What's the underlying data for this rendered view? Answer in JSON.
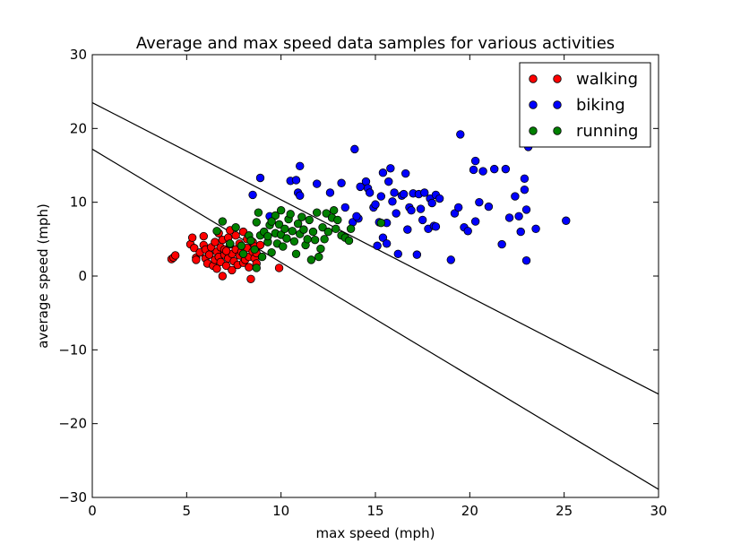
{
  "chart_data": {
    "type": "scatter",
    "title": "Average and max speed data samples for various activities",
    "xlabel": "max speed (mph)",
    "ylabel": "average speed (mph)",
    "xlim": [
      0,
      30
    ],
    "ylim": [
      -30,
      30
    ],
    "xticks": [
      0,
      5,
      10,
      15,
      20,
      25,
      30
    ],
    "yticks": [
      -30,
      -20,
      -10,
      0,
      10,
      20,
      30
    ],
    "xtick_labels": [
      "0",
      "5",
      "10",
      "15",
      "20",
      "25",
      "30"
    ],
    "ytick_labels": [
      "−30",
      "−20",
      "−10",
      "0",
      "10",
      "20",
      "30"
    ],
    "grid": false,
    "legend_position": "top-right",
    "series": [
      {
        "name": "walking",
        "color": "#ff0000",
        "points": [
          [
            4.2,
            2.3
          ],
          [
            4.3,
            2.5
          ],
          [
            4.4,
            2.8
          ],
          [
            5.2,
            4.3
          ],
          [
            5.3,
            5.2
          ],
          [
            5.4,
            3.8
          ],
          [
            5.5,
            2.5
          ],
          [
            5.5,
            2.2
          ],
          [
            5.7,
            3.2
          ],
          [
            5.9,
            5.4
          ],
          [
            5.9,
            4.2
          ],
          [
            6.0,
            3.6
          ],
          [
            6.0,
            2.4
          ],
          [
            6.1,
            1.7
          ],
          [
            6.2,
            2.9
          ],
          [
            6.3,
            3.9
          ],
          [
            6.4,
            1.4
          ],
          [
            6.5,
            2.2
          ],
          [
            6.5,
            4.6
          ],
          [
            6.6,
            3.3
          ],
          [
            6.6,
            1.0
          ],
          [
            6.7,
            2.6
          ],
          [
            6.7,
            5.8
          ],
          [
            6.8,
            3.9
          ],
          [
            6.8,
            1.9
          ],
          [
            6.9,
            0.0
          ],
          [
            6.9,
            4.9
          ],
          [
            7.0,
            2.9
          ],
          [
            7.0,
            3.6
          ],
          [
            7.1,
            1.4
          ],
          [
            7.2,
            5.2
          ],
          [
            7.2,
            2.4
          ],
          [
            7.3,
            4.3
          ],
          [
            7.3,
            6.2
          ],
          [
            7.4,
            3.0
          ],
          [
            7.4,
            0.8
          ],
          [
            7.5,
            2.0
          ],
          [
            7.6,
            5.5
          ],
          [
            7.6,
            3.6
          ],
          [
            7.7,
            1.5
          ],
          [
            7.8,
            4.4
          ],
          [
            7.8,
            2.8
          ],
          [
            7.9,
            3.3
          ],
          [
            8.0,
            1.8
          ],
          [
            8.0,
            6.0
          ],
          [
            8.1,
            2.2
          ],
          [
            8.2,
            3.8
          ],
          [
            8.2,
            5.0
          ],
          [
            8.3,
            2.6
          ],
          [
            8.3,
            1.2
          ],
          [
            8.4,
            -0.4
          ],
          [
            8.5,
            3.3
          ],
          [
            8.5,
            4.6
          ],
          [
            8.6,
            2.4
          ],
          [
            8.7,
            1.7
          ],
          [
            8.7,
            3.1
          ],
          [
            8.6,
            4.0
          ],
          [
            8.9,
            4.2
          ],
          [
            9.9,
            1.1
          ],
          [
            7.1,
            3.4
          ]
        ]
      },
      {
        "name": "biking",
        "color": "#0000ff",
        "points": [
          [
            8.5,
            11.0
          ],
          [
            8.9,
            13.3
          ],
          [
            9.4,
            8.1
          ],
          [
            10.5,
            12.9
          ],
          [
            10.8,
            13.0
          ],
          [
            10.9,
            11.3
          ],
          [
            11.0,
            14.9
          ],
          [
            11.0,
            10.9
          ],
          [
            11.9,
            12.5
          ],
          [
            12.6,
            11.3
          ],
          [
            13.2,
            12.6
          ],
          [
            13.4,
            9.3
          ],
          [
            13.8,
            7.3
          ],
          [
            13.9,
            17.2
          ],
          [
            14.1,
            7.8
          ],
          [
            14.2,
            12.1
          ],
          [
            14.5,
            12.8
          ],
          [
            14.6,
            11.9
          ],
          [
            14.7,
            11.3
          ],
          [
            14.9,
            9.3
          ],
          [
            15.0,
            9.7
          ],
          [
            15.2,
            7.3
          ],
          [
            15.3,
            10.8
          ],
          [
            15.4,
            14.0
          ],
          [
            15.4,
            5.2
          ],
          [
            15.6,
            7.2
          ],
          [
            15.6,
            4.4
          ],
          [
            15.7,
            12.8
          ],
          [
            15.8,
            14.6
          ],
          [
            15.9,
            10.1
          ],
          [
            16.0,
            11.3
          ],
          [
            16.1,
            8.5
          ],
          [
            16.2,
            3.0
          ],
          [
            16.4,
            10.9
          ],
          [
            16.6,
            13.9
          ],
          [
            16.7,
            6.3
          ],
          [
            16.8,
            9.3
          ],
          [
            16.9,
            8.9
          ],
          [
            17.0,
            11.2
          ],
          [
            17.2,
            2.9
          ],
          [
            17.3,
            11.1
          ],
          [
            17.4,
            9.1
          ],
          [
            17.5,
            7.6
          ],
          [
            17.6,
            11.3
          ],
          [
            17.8,
            6.4
          ],
          [
            17.9,
            10.5
          ],
          [
            18.0,
            9.9
          ],
          [
            18.1,
            6.8
          ],
          [
            18.2,
            11.0
          ],
          [
            18.4,
            10.5
          ],
          [
            19.0,
            2.2
          ],
          [
            19.2,
            8.5
          ],
          [
            19.4,
            9.3
          ],
          [
            19.5,
            19.2
          ],
          [
            19.7,
            6.6
          ],
          [
            19.9,
            6.1
          ],
          [
            20.2,
            14.4
          ],
          [
            20.3,
            15.6
          ],
          [
            20.5,
            10.0
          ],
          [
            20.7,
            14.2
          ],
          [
            21.0,
            9.4
          ],
          [
            21.3,
            14.5
          ],
          [
            21.7,
            4.3
          ],
          [
            21.9,
            14.5
          ],
          [
            22.1,
            7.9
          ],
          [
            22.4,
            10.8
          ],
          [
            22.6,
            8.1
          ],
          [
            22.7,
            6.0
          ],
          [
            22.9,
            13.2
          ],
          [
            22.9,
            11.7
          ],
          [
            23.0,
            9.0
          ],
          [
            23.0,
            2.1
          ],
          [
            23.1,
            17.5
          ],
          [
            23.5,
            6.4
          ],
          [
            25.1,
            7.5
          ],
          [
            20.3,
            7.4
          ],
          [
            18.2,
            6.7
          ],
          [
            16.5,
            11.1
          ],
          [
            14.0,
            8.1
          ],
          [
            15.1,
            4.1
          ]
        ]
      },
      {
        "name": "running",
        "color": "#008000",
        "points": [
          [
            6.6,
            6.1
          ],
          [
            6.9,
            7.4
          ],
          [
            7.3,
            4.4
          ],
          [
            7.6,
            6.6
          ],
          [
            7.9,
            4.1
          ],
          [
            8.0,
            3.0
          ],
          [
            8.3,
            5.5
          ],
          [
            8.4,
            4.8
          ],
          [
            8.6,
            3.6
          ],
          [
            8.7,
            7.3
          ],
          [
            8.8,
            8.6
          ],
          [
            8.9,
            5.5
          ],
          [
            9.0,
            2.6
          ],
          [
            9.1,
            6.0
          ],
          [
            9.3,
            4.6
          ],
          [
            9.3,
            5.4
          ],
          [
            9.4,
            6.9
          ],
          [
            9.5,
            3.2
          ],
          [
            9.7,
            8.2
          ],
          [
            9.7,
            5.8
          ],
          [
            9.8,
            4.4
          ],
          [
            9.9,
            7.0
          ],
          [
            10.0,
            5.6
          ],
          [
            10.0,
            8.9
          ],
          [
            10.1,
            4.0
          ],
          [
            10.2,
            6.4
          ],
          [
            10.3,
            5.1
          ],
          [
            10.4,
            7.7
          ],
          [
            10.5,
            8.4
          ],
          [
            10.6,
            6.1
          ],
          [
            10.7,
            4.7
          ],
          [
            10.8,
            3.0
          ],
          [
            10.9,
            7.1
          ],
          [
            11.0,
            5.7
          ],
          [
            11.1,
            8.0
          ],
          [
            11.2,
            6.3
          ],
          [
            11.3,
            4.2
          ],
          [
            11.4,
            5.0
          ],
          [
            11.5,
            7.6
          ],
          [
            11.6,
            2.2
          ],
          [
            11.7,
            6.0
          ],
          [
            11.8,
            4.9
          ],
          [
            11.9,
            8.6
          ],
          [
            12.0,
            2.6
          ],
          [
            12.1,
            3.7
          ],
          [
            12.2,
            6.6
          ],
          [
            12.3,
            5.0
          ],
          [
            12.4,
            8.5
          ],
          [
            12.5,
            6.0
          ],
          [
            12.7,
            7.9
          ],
          [
            12.8,
            8.9
          ],
          [
            12.9,
            6.4
          ],
          [
            13.0,
            7.6
          ],
          [
            13.2,
            5.5
          ],
          [
            13.4,
            5.2
          ],
          [
            13.6,
            4.8
          ],
          [
            13.7,
            6.4
          ],
          [
            15.3,
            7.2
          ],
          [
            8.7,
            1.1
          ],
          [
            9.5,
            7.4
          ]
        ]
      }
    ],
    "lines": [
      {
        "from": [
          0,
          23.5
        ],
        "to": [
          30,
          -16.0
        ],
        "color": "#000000"
      },
      {
        "from": [
          0,
          17.2
        ],
        "to": [
          30,
          -28.9
        ],
        "color": "#000000"
      }
    ]
  }
}
